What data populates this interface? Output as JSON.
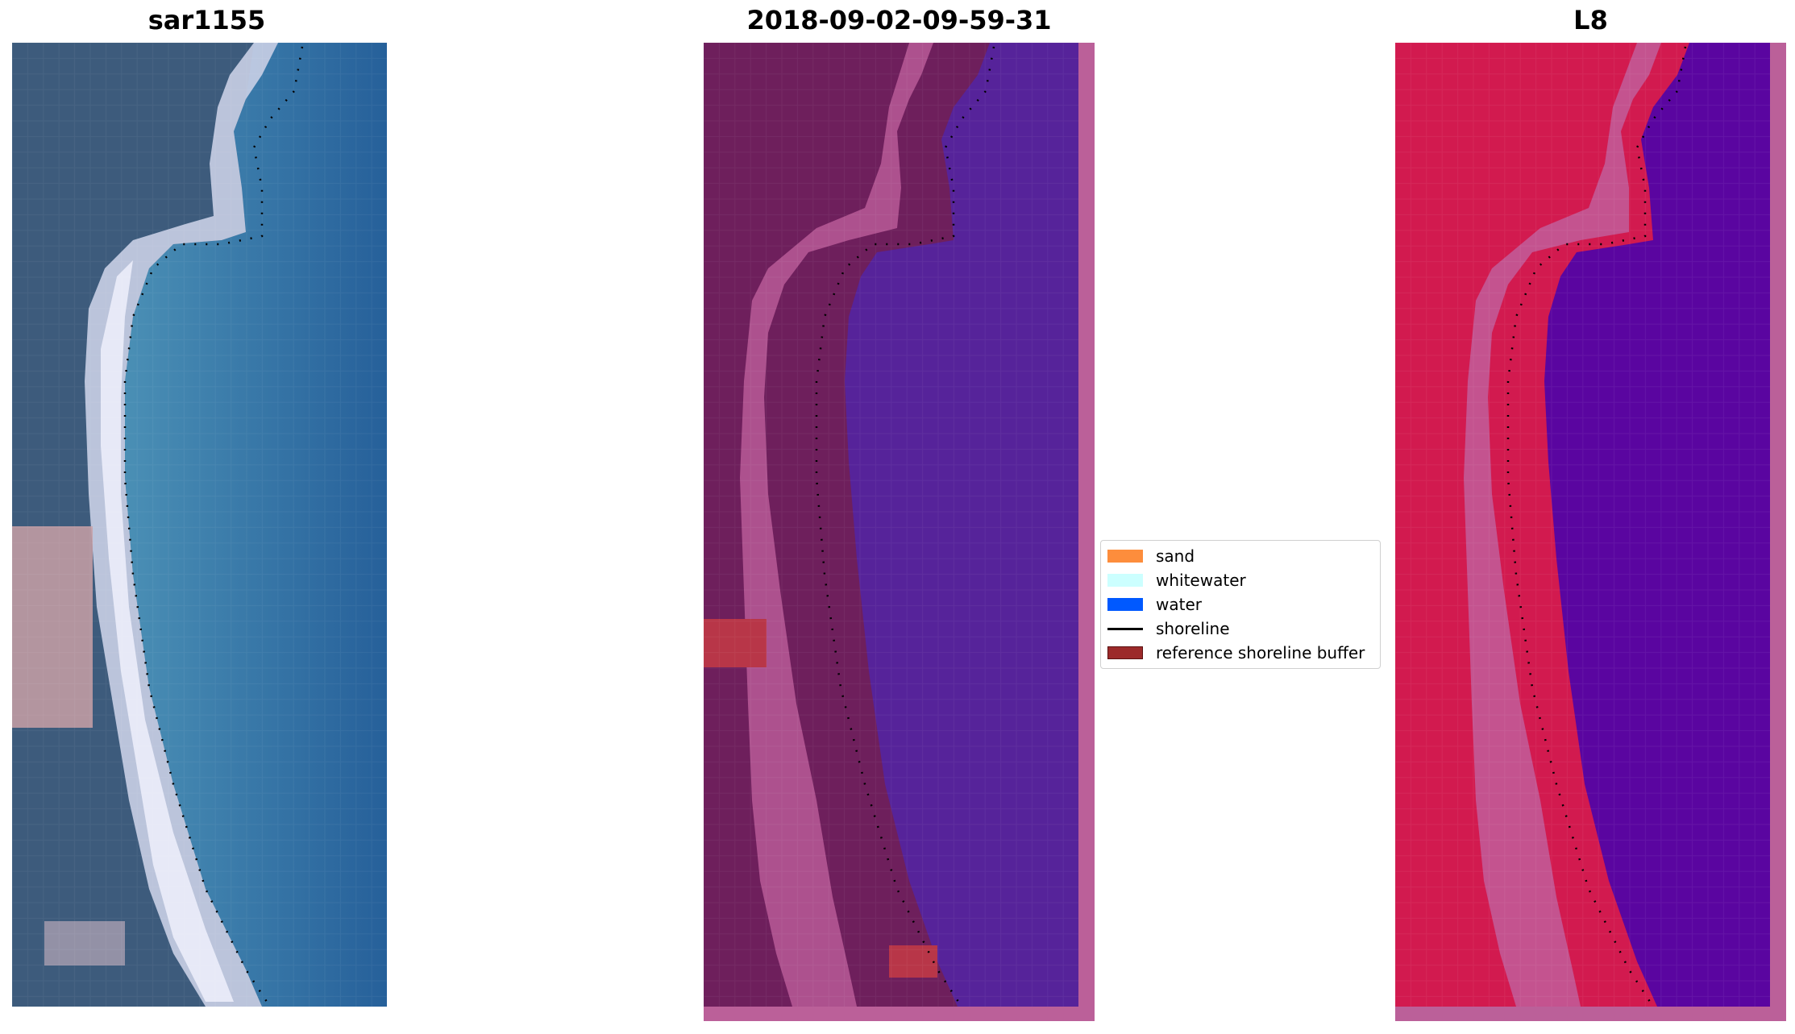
{
  "panels": {
    "left": {
      "title": "sar1155"
    },
    "center": {
      "title": "2018-09-02-09-59-31"
    },
    "right": {
      "title": "L8"
    }
  },
  "legend": {
    "items": [
      {
        "label": "sand",
        "type": "patch",
        "color": "#fd8d3c"
      },
      {
        "label": "whitewater",
        "type": "patch",
        "color": "#ccffff"
      },
      {
        "label": "water",
        "type": "patch",
        "color": "#0059ff"
      },
      {
        "label": "shoreline",
        "type": "line",
        "color": "#000000"
      },
      {
        "label": "reference shoreline buffer",
        "type": "patch",
        "color": "#9c2a2a"
      }
    ]
  },
  "colors": {
    "rgb_land": "#3c5a7a",
    "rgb_sea": "#2e6e9e",
    "rgb_beach": "#d8dcf0",
    "class_land": "#6e1f5c",
    "class_beach": "#b85b96",
    "class_water": "#56239a",
    "class_buffer": "#b83648",
    "ndwi_land": "#d21a4f",
    "ndwi_beach": "#c25a96",
    "ndwi_water": "#5a05a0"
  }
}
